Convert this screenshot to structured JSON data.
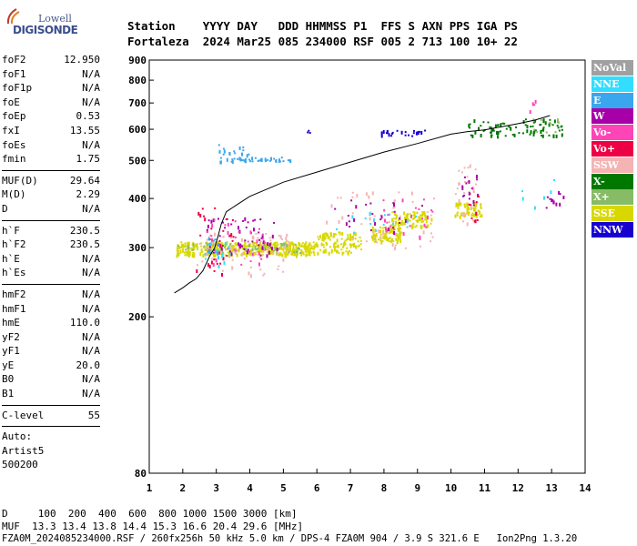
{
  "logo": {
    "line1": "Lowell",
    "line2": "DIGISONDE"
  },
  "header": {
    "line1": "Station    YYYY DAY   DDD HHMMSS P1  FFS S AXN PPS IGA PS",
    "line2": "Fortaleza  2024 Mar25 085 234000 RSF 005 2 713 100 10+ 22"
  },
  "params": {
    "group1": [
      {
        "name": "foF2",
        "value": "12.950"
      },
      {
        "name": "foF1",
        "value": "N/A"
      },
      {
        "name": "foF1p",
        "value": "N/A"
      },
      {
        "name": "foE",
        "value": "N/A"
      },
      {
        "name": "foEp",
        "value": "0.53"
      },
      {
        "name": "fxI",
        "value": "13.55"
      },
      {
        "name": "foEs",
        "value": "N/A"
      },
      {
        "name": "fmin",
        "value": "1.75"
      }
    ],
    "group2": [
      {
        "name": "MUF(D)",
        "value": "29.64"
      },
      {
        "name": "M(D)",
        "value": "2.29"
      },
      {
        "name": "D",
        "value": "N/A"
      }
    ],
    "group3": [
      {
        "name": "h`F",
        "value": "230.5"
      },
      {
        "name": "h`F2",
        "value": "230.5"
      },
      {
        "name": "h`E",
        "value": "N/A"
      },
      {
        "name": "h`Es",
        "value": "N/A"
      }
    ],
    "group4": [
      {
        "name": "hmF2",
        "value": "N/A"
      },
      {
        "name": "hmF1",
        "value": "N/A"
      },
      {
        "name": "hmE",
        "value": "110.0"
      },
      {
        "name": "yF2",
        "value": "N/A"
      },
      {
        "name": "yF1",
        "value": "N/A"
      },
      {
        "name": "yE",
        "value": "20.0"
      },
      {
        "name": "B0",
        "value": "N/A"
      },
      {
        "name": "B1",
        "value": "N/A"
      }
    ],
    "group5": [
      {
        "name": "C-level",
        "value": "55"
      }
    ],
    "auto": [
      "Auto:",
      "Artist5",
      "500200"
    ]
  },
  "legend": [
    {
      "label": "NoVal",
      "color": "#a0a0a0"
    },
    {
      "label": "NNE",
      "color": "#33ddff"
    },
    {
      "label": "E",
      "color": "#3aa6ee"
    },
    {
      "label": "W",
      "color": "#a800a8"
    },
    {
      "label": "Vo-",
      "color": "#ff44b8"
    },
    {
      "label": "Vo+",
      "color": "#ee0044"
    },
    {
      "label": "SSW",
      "color": "#f4b4b4"
    },
    {
      "label": "X-",
      "color": "#007800"
    },
    {
      "label": "X+",
      "color": "#88bb66"
    },
    {
      "label": "SSE",
      "color": "#d8d800"
    },
    {
      "label": "NNW",
      "color": "#1800d0"
    }
  ],
  "footer": {
    "line1": "D     100  200  400  600  800 1000 1500 3000 [km]",
    "line2": "MUF  13.3 13.4 13.8 14.4 15.3 16.6 20.4 29.6 [MHz]",
    "line3": "FZA0M_2024085234000.RSF / 260fx256h 50 kHz 5.0 km / DPS-4 FZA0M 904 / 3.9 S 321.6 E   Ion2Png 1.3.20"
  },
  "chart_data": {
    "type": "scatter",
    "title": "",
    "xlabel": "",
    "ylabel": "",
    "xlim": [
      1,
      14
    ],
    "ylim": [
      80,
      900
    ],
    "yscale": "log",
    "x_ticks": [
      1,
      2,
      3,
      4,
      5,
      6,
      7,
      8,
      9,
      10,
      11,
      12,
      13,
      14
    ],
    "y_ticks": [
      80,
      200,
      300,
      400,
      500,
      600,
      700,
      800,
      900
    ],
    "grid": false,
    "legend_position": "right",
    "trace": {
      "name": "",
      "color": "#000000",
      "x": [
        1.75,
        2.0,
        2.2,
        2.4,
        2.6,
        2.8,
        2.95,
        3.05,
        3.15,
        3.3,
        3.6,
        4.0,
        5.0,
        6.0,
        7.0,
        8.0,
        9.0,
        10.0,
        10.5,
        11.0,
        12.0,
        12.5,
        12.95
      ],
      "y": [
        230,
        237,
        244,
        250,
        262,
        285,
        300,
        320,
        345,
        370,
        385,
        405,
        440,
        467,
        495,
        525,
        552,
        583,
        592,
        598,
        620,
        633,
        650
      ]
    },
    "clusters": [
      {
        "mode": "SSE",
        "xr": [
          1.8,
          6.0
        ],
        "yr": [
          288,
          312
        ],
        "n": 420
      },
      {
        "mode": "SSE",
        "xr": [
          6.0,
          7.3
        ],
        "yr": [
          292,
          330
        ],
        "n": 110
      },
      {
        "mode": "SSE",
        "xr": [
          7.6,
          8.5
        ],
        "yr": [
          312,
          340
        ],
        "n": 90
      },
      {
        "mode": "SSE",
        "xr": [
          8.2,
          9.4
        ],
        "yr": [
          340,
          372
        ],
        "n": 90
      },
      {
        "mode": "SSE",
        "xr": [
          10.1,
          10.9
        ],
        "yr": [
          362,
          392
        ],
        "n": 70
      },
      {
        "mode": "X+",
        "xr": [
          1.8,
          5.5
        ],
        "yr": [
          290,
          310
        ],
        "n": 60
      },
      {
        "mode": "SSW",
        "xr": [
          2.4,
          5.2
        ],
        "yr": [
          255,
          330
        ],
        "n": 70
      },
      {
        "mode": "SSW",
        "xr": [
          6.2,
          9.5
        ],
        "yr": [
          300,
          420
        ],
        "n": 50
      },
      {
        "mode": "SSW",
        "xr": [
          10.1,
          10.8
        ],
        "yr": [
          340,
          490
        ],
        "n": 30
      },
      {
        "mode": "W",
        "xr": [
          2.7,
          4.8
        ],
        "yr": [
          285,
          360
        ],
        "n": 60
      },
      {
        "mode": "W",
        "xr": [
          6.4,
          9.5
        ],
        "yr": [
          330,
          400
        ],
        "n": 25
      },
      {
        "mode": "W",
        "xr": [
          10.3,
          10.8
        ],
        "yr": [
          380,
          460
        ],
        "n": 15
      },
      {
        "mode": "Vo-",
        "xr": [
          2.7,
          4.5
        ],
        "yr": [
          270,
          360
        ],
        "n": 35
      },
      {
        "mode": "Vo-",
        "xr": [
          7.8,
          9.5
        ],
        "yr": [
          320,
          400
        ],
        "n": 25
      },
      {
        "mode": "Vo+",
        "xr": [
          2.3,
          3.5
        ],
        "yr": [
          240,
          380
        ],
        "n": 30
      },
      {
        "mode": "Vo+",
        "xr": [
          10.5,
          10.8
        ],
        "yr": [
          350,
          420
        ],
        "n": 10
      },
      {
        "mode": "NNE",
        "xr": [
          2.6,
          3.4
        ],
        "yr": [
          270,
          310
        ],
        "n": 15
      },
      {
        "mode": "NNE",
        "xr": [
          6.5,
          9.0
        ],
        "yr": [
          320,
          370
        ],
        "n": 15
      },
      {
        "mode": "E",
        "xr": [
          3.0,
          5.3
        ],
        "yr": [
          498,
          512
        ],
        "n": 45
      },
      {
        "mode": "E",
        "xr": [
          3.0,
          4.0
        ],
        "yr": [
          515,
          555
        ],
        "n": 15
      },
      {
        "mode": "E",
        "xr": [
          2.7,
          3.2
        ],
        "yr": [
          290,
          320
        ],
        "n": 10
      },
      {
        "mode": "X-",
        "xr": [
          10.5,
          13.3
        ],
        "yr": [
          580,
          640
        ],
        "n": 90
      },
      {
        "mode": "NNW",
        "xr": [
          7.9,
          9.2
        ],
        "yr": [
          578,
          600
        ],
        "n": 25
      },
      {
        "mode": "NNW",
        "xr": [
          5.7,
          5.8
        ],
        "yr": [
          585,
          600
        ],
        "n": 3
      },
      {
        "mode": "X+",
        "xr": [
          12.4,
          13.2
        ],
        "yr": [
          590,
          640
        ],
        "n": 10
      },
      {
        "mode": "W",
        "xr": [
          12.8,
          13.4
        ],
        "yr": [
          380,
          420
        ],
        "n": 12
      },
      {
        "mode": "Vo-",
        "xr": [
          12.3,
          12.6
        ],
        "yr": [
          660,
          720
        ],
        "n": 4
      },
      {
        "mode": "NNE",
        "xr": [
          12.1,
          13.3
        ],
        "yr": [
          380,
          460
        ],
        "n": 6
      }
    ]
  }
}
